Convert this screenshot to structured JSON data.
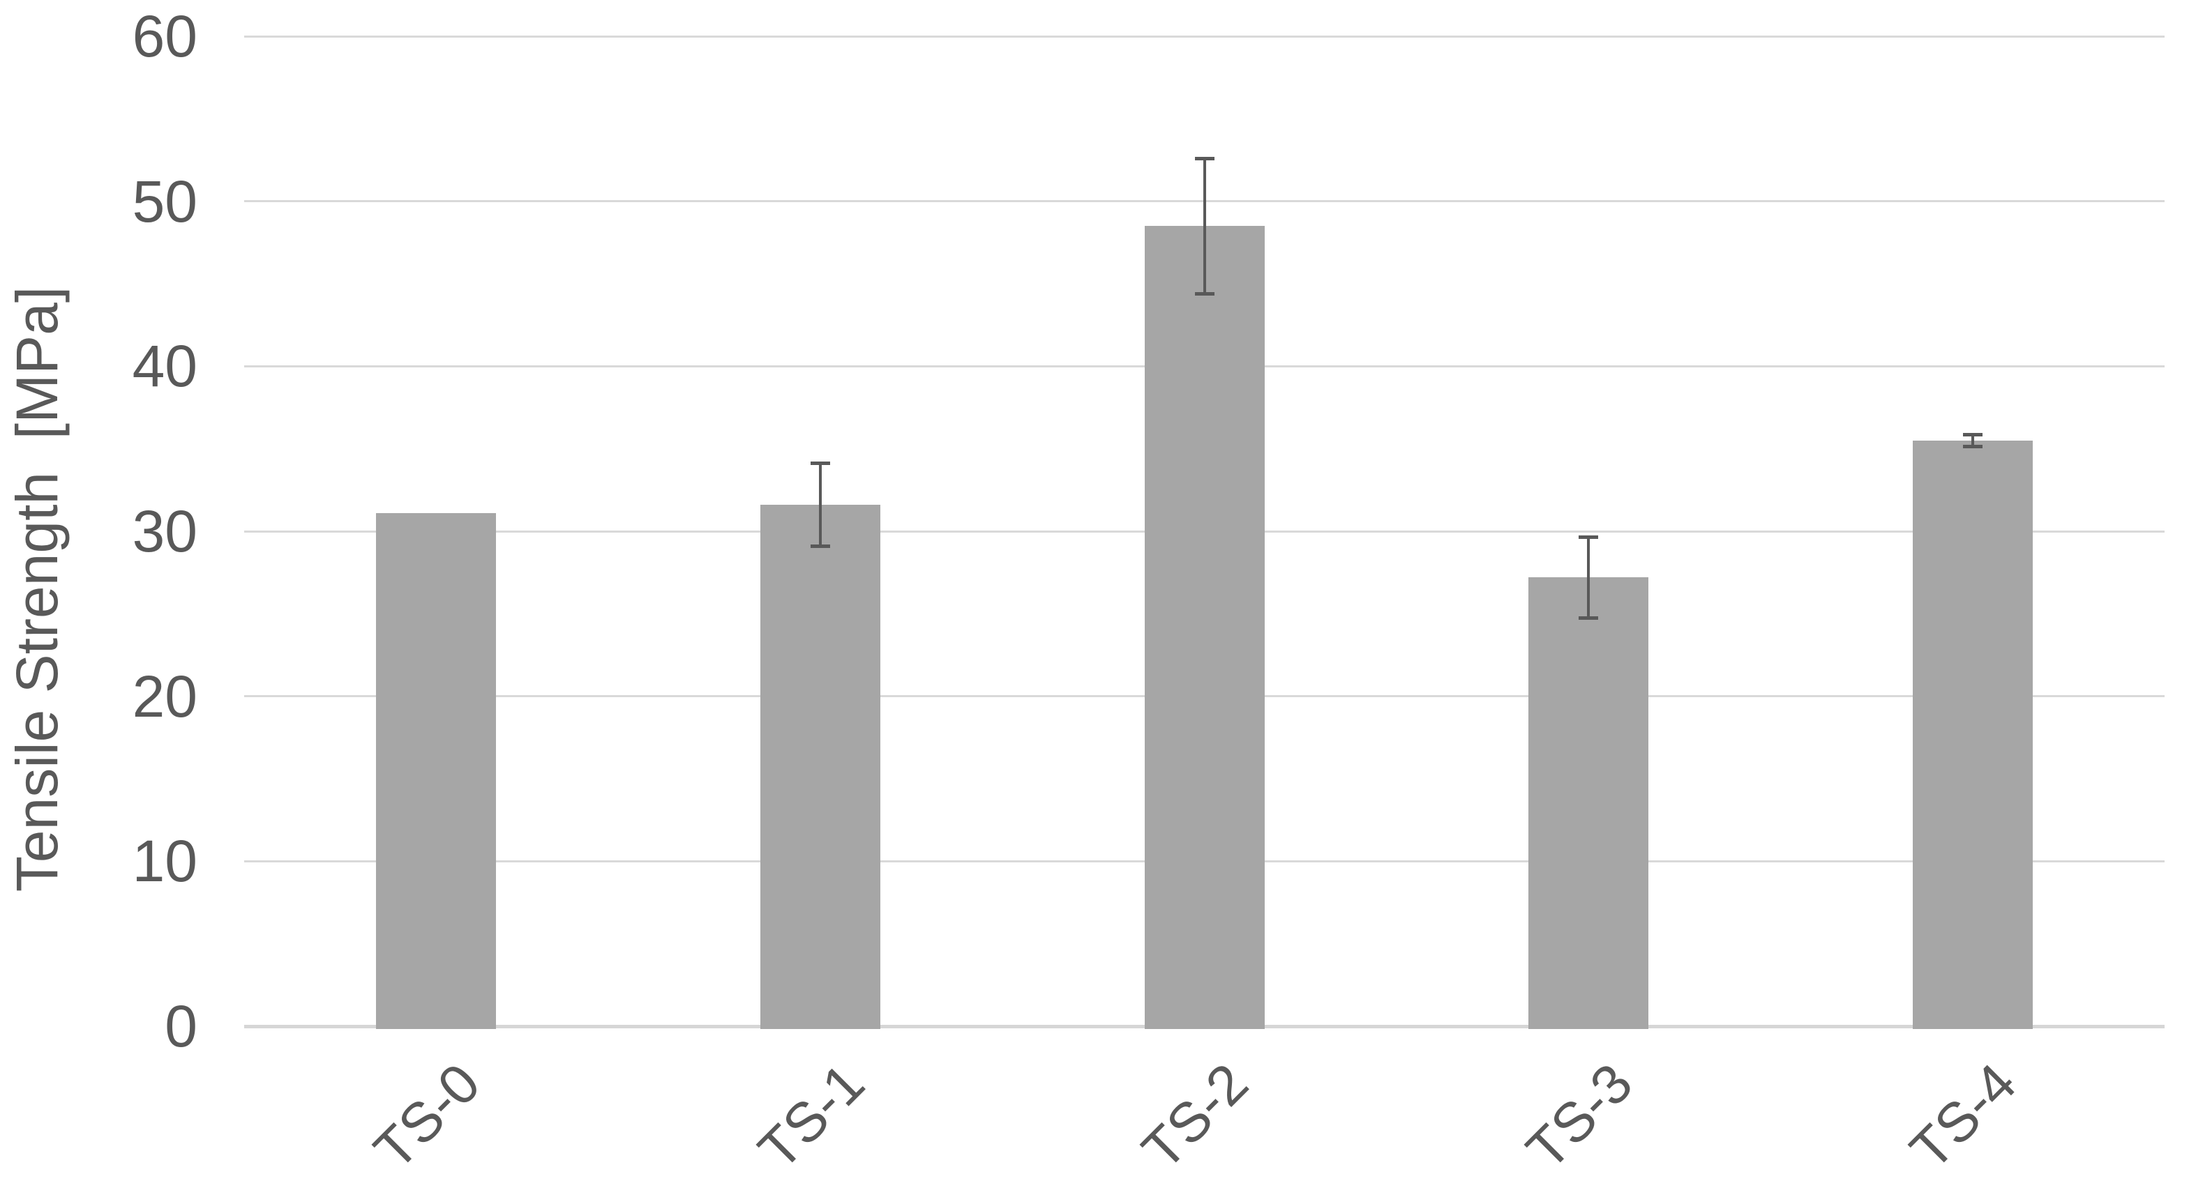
{
  "chart_data": {
    "type": "bar",
    "title": "",
    "categories": [
      "TS-0",
      "TS-1",
      "TS-2",
      "TS-3",
      "TS-4"
    ],
    "values": [
      31.1,
      31.6,
      48.5,
      27.2,
      35.5
    ],
    "error_bars": [
      0,
      2.5,
      4.1,
      2.45,
      0.35
    ],
    "xlabel": "",
    "ylabel": "Tensile Strength  [MPa]",
    "ylim": [
      0,
      60
    ],
    "yticks": [
      0,
      10,
      20,
      30,
      40,
      50,
      60
    ],
    "grid": "horizontal",
    "legend_position": "none",
    "colors": {
      "bar_fill": "#A6A6A6",
      "error_bar": "#595959",
      "gridline": "#D9D9D9",
      "axis_line": "#D6D6D6",
      "tick_text": "#595959",
      "axis_title_text": "#595959",
      "background": "#FFFFFF"
    }
  }
}
